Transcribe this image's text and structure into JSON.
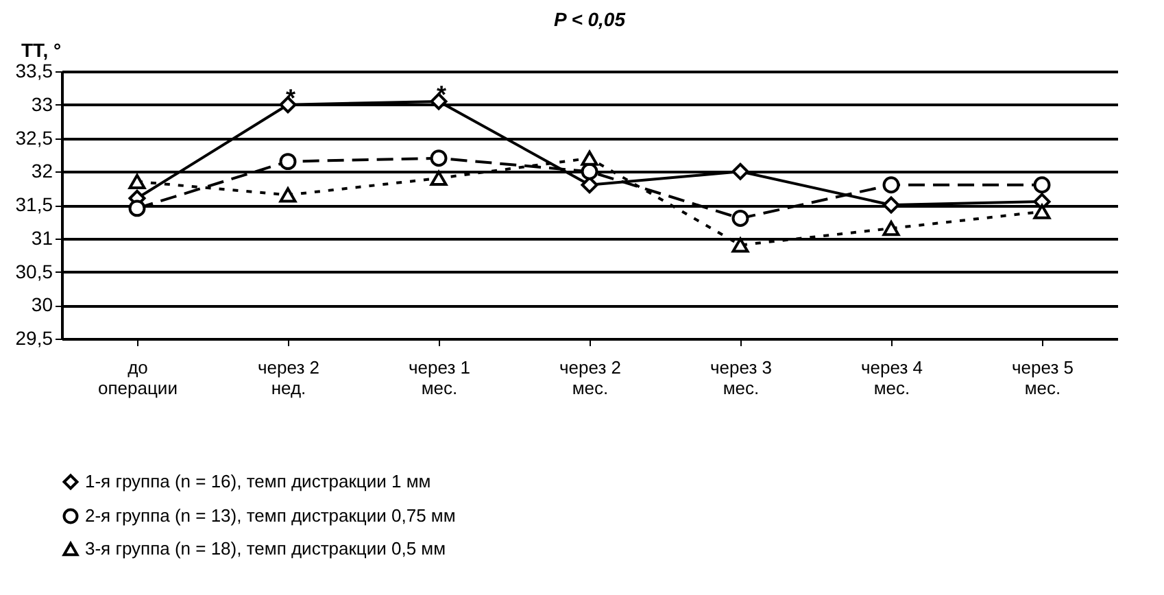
{
  "chart_data": {
    "type": "line",
    "title": "P < 0,05",
    "ylabel": "ТТ, °",
    "categories": [
      "до операции",
      "через 2 нед.",
      "через 1 мес.",
      "через 2 мес.",
      "через 3 мес.",
      "через 4 мес.",
      "через 5 мес."
    ],
    "series": [
      {
        "name": "1-я группа (n = 16), темп дистракции 1 мм",
        "color": "#000000",
        "marker": "diamond",
        "line_style": "solid",
        "values": [
          31.6,
          33.0,
          33.05,
          31.8,
          32.0,
          31.5,
          31.55
        ]
      },
      {
        "name": "2-я группа (n = 13), темп дистракции 0,75 мм",
        "color": "#000000",
        "marker": "circle",
        "line_style": "dashed",
        "values": [
          31.45,
          32.15,
          32.2,
          32.0,
          31.3,
          31.8,
          31.8
        ]
      },
      {
        "name": "3-я группа (n = 18), темп дистракции 0,5 мм",
        "color": "#000000",
        "marker": "triangle",
        "line_style": "dotted",
        "values": [
          31.85,
          31.65,
          31.9,
          32.2,
          30.9,
          31.15,
          31.4
        ]
      }
    ],
    "ylim": [
      29.5,
      33.5
    ],
    "yticks": [
      {
        "value": 29.5,
        "label": "29,5"
      },
      30,
      {
        "value": 30.5,
        "label": "30,5"
      },
      31,
      {
        "value": 31.5,
        "label": "31,5"
      },
      32,
      {
        "value": 32.5,
        "label": "32,5"
      },
      33,
      {
        "value": 33.5,
        "label": "33,5"
      }
    ],
    "grid": "y",
    "legend": "bottom",
    "annotations": [
      {
        "text": "*",
        "x": "через 2 нед.",
        "y": 33.0
      },
      {
        "text": "*",
        "x": "через 1 мес.",
        "y": 33.05
      }
    ]
  }
}
